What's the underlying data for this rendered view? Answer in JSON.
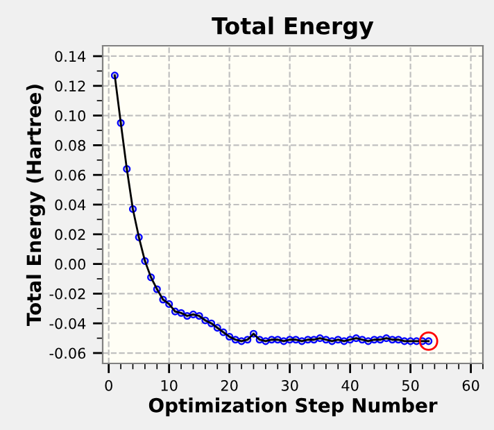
{
  "chart_data": {
    "type": "line",
    "title": "Total Energy",
    "xlabel": "Optimization Step Number",
    "ylabel": "Total Energy (Hartree)",
    "x": [
      1,
      2,
      3,
      4,
      5,
      6,
      7,
      8,
      9,
      10,
      11,
      12,
      13,
      14,
      15,
      16,
      17,
      18,
      19,
      20,
      21,
      22,
      23,
      24,
      25,
      26,
      27,
      28,
      29,
      30,
      31,
      32,
      33,
      34,
      35,
      36,
      37,
      38,
      39,
      40,
      41,
      42,
      43,
      44,
      45,
      46,
      47,
      48,
      49,
      50,
      51,
      52,
      53
    ],
    "series": [
      {
        "color": "#0000ff",
        "marker": "circle",
        "values": [
          0.127,
          0.095,
          0.064,
          0.037,
          0.018,
          0.002,
          -0.009,
          -0.017,
          -0.024,
          -0.027,
          -0.032,
          -0.033,
          -0.035,
          -0.034,
          -0.035,
          -0.038,
          -0.04,
          -0.043,
          -0.046,
          -0.049,
          -0.051,
          -0.052,
          -0.051,
          -0.047,
          -0.051,
          -0.052,
          -0.051,
          -0.051,
          -0.052,
          -0.051,
          -0.051,
          -0.052,
          -0.051,
          -0.051,
          -0.05,
          -0.051,
          -0.052,
          -0.051,
          -0.052,
          -0.051,
          -0.05,
          -0.051,
          -0.052,
          -0.051,
          -0.051,
          -0.05,
          -0.051,
          -0.051,
          -0.052,
          -0.052,
          -0.052,
          -0.052,
          -0.052
        ]
      },
      {
        "type": "scatter",
        "color": "#ff0000",
        "marker": "circle",
        "x": [
          53
        ],
        "values": [
          -0.052
        ]
      }
    ],
    "xlim": [
      -1,
      62
    ],
    "ylim": [
      -0.067,
      0.147
    ],
    "xticks": [
      0,
      10,
      20,
      30,
      40,
      50,
      60
    ],
    "yticks": [
      {
        "value": 0.14,
        "label": "0.14"
      },
      {
        "value": 0.12,
        "label": "0.12"
      },
      {
        "value": 0.1,
        "label": "0.10"
      },
      {
        "value": 0.08,
        "label": "0.08"
      },
      {
        "value": 0.06,
        "label": "0.06"
      },
      {
        "value": 0.04,
        "label": "0.04"
      },
      {
        "value": 0.02,
        "label": "0.02"
      },
      {
        "value": 0,
        "label": "0.00"
      },
      {
        "value": -0.02,
        "label": "-0.02"
      },
      {
        "value": -0.04,
        "label": "-0.04"
      },
      {
        "value": -0.06,
        "label": "-0.06"
      }
    ],
    "grid": true,
    "legend": false,
    "line_style": "solid"
  }
}
